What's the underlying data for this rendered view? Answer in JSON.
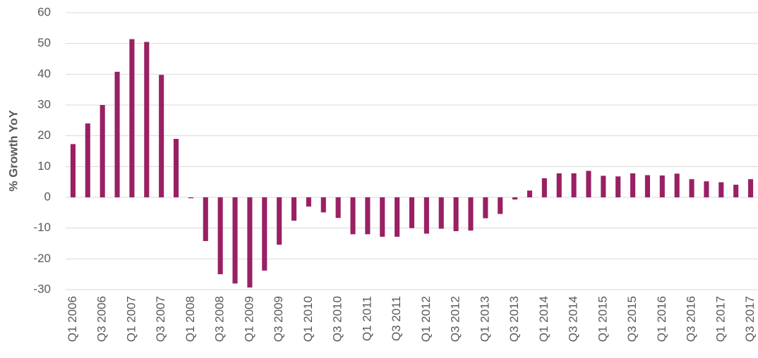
{
  "chart_data": {
    "type": "bar",
    "y_label": "% Growth YoY",
    "categories": [
      "Q1 2006",
      null,
      "Q3 2006",
      null,
      "Q1 2007",
      null,
      "Q3 2007",
      null,
      "Q1 2008",
      null,
      "Q3 2008",
      null,
      "Q1 2009",
      null,
      "Q3 2009",
      null,
      "Q1 2010",
      null,
      "Q3 2010",
      null,
      "Q1 2011",
      null,
      "Q3 2011",
      null,
      "Q1 2012",
      null,
      "Q3 2012",
      null,
      "Q1 2013",
      null,
      "Q3 2013",
      null,
      "Q1 2014",
      null,
      "Q3 2014",
      null,
      "Q1 2015",
      null,
      "Q3 2015",
      null,
      "Q1 2016",
      null,
      "Q3 2016",
      null,
      "Q1 2017",
      null,
      "Q3 2017"
    ],
    "values": [
      17.3,
      24,
      30,
      40.8,
      51.4,
      50.5,
      39.8,
      19,
      -0.3,
      -14.2,
      -25,
      -28,
      -29.3,
      -23.8,
      -15.4,
      -7.6,
      -3,
      -4.9,
      -6.7,
      -12,
      -12,
      -12.8,
      -12.8,
      -10,
      -11.8,
      -10.2,
      -11,
      -10.8,
      -6.8,
      -5.4,
      -0.7,
      2.2,
      6.2,
      7.8,
      7.8,
      8.6,
      7,
      6.8,
      7.8,
      7.2,
      7.1,
      7.7,
      5.9,
      5.2,
      4.9,
      4.1,
      5.9
    ],
    "color": "#982063",
    "ylim": [
      -30,
      60
    ],
    "yticks": [
      -30,
      -20,
      -10,
      0,
      10,
      20,
      30,
      40,
      50,
      60
    ],
    "grid": true
  }
}
